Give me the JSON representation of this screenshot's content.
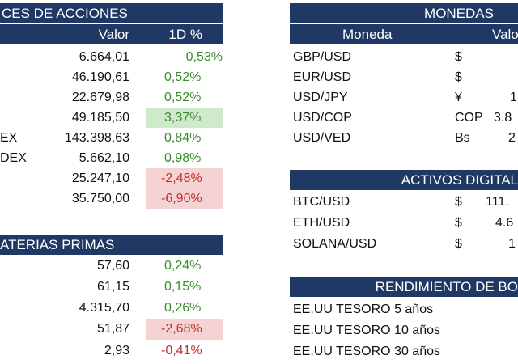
{
  "acciones": {
    "title": "CES DE ACCIONES",
    "col_valor": "Valor",
    "col_1d": "1D %",
    "rows": [
      {
        "name": "",
        "valor": "6.664,01",
        "change": "0,53%"
      },
      {
        "name": "",
        "valor": "46.190,61",
        "change": "0,52%"
      },
      {
        "name": "",
        "valor": "22.679,98",
        "change": "0,52%"
      },
      {
        "name": "",
        "valor": "49.185,50",
        "change": "3,37%"
      },
      {
        "name": "EX",
        "valor": "143.398,63",
        "change": "0,84%"
      },
      {
        "name": "DEX",
        "valor": "5.662,10",
        "change": "0,98%"
      },
      {
        "name": "",
        "valor": "25.247,10",
        "change": "-2,48%"
      },
      {
        "name": "",
        "valor": "35.750,00",
        "change": "-6,90%"
      }
    ]
  },
  "materias": {
    "title": "ATERIAS PRIMAS",
    "rows": [
      {
        "valor": "57,60",
        "change": "0,24%"
      },
      {
        "valor": "61,15",
        "change": "0,15%"
      },
      {
        "valor": "4.315,70",
        "change": "0,26%"
      },
      {
        "valor": "51,87",
        "change": "-2,68%"
      },
      {
        "valor": "2,93",
        "change": "-0,41%"
      }
    ]
  },
  "monedas": {
    "title": "MONEDAS",
    "col_moneda": "Moneda",
    "col_valor": "Valo",
    "rows": [
      {
        "pair": "GBP/USD",
        "symbol": "$",
        "value": ""
      },
      {
        "pair": "EUR/USD",
        "symbol": "$",
        "value": ""
      },
      {
        "pair": "USD/JPY",
        "symbol": "¥",
        "value": "1"
      },
      {
        "pair": "USD/COP",
        "symbol": "COP",
        "value": "3.8"
      },
      {
        "pair": "USD/VED",
        "symbol": "Bs",
        "value": "2"
      }
    ]
  },
  "activos": {
    "title": "ACTIVOS DIGITAL",
    "rows": [
      {
        "pair": "BTC/USD",
        "symbol": "$",
        "value": "111."
      },
      {
        "pair": "ETH/USD",
        "symbol": "$",
        "value": "4.6"
      },
      {
        "pair": "SOLANA/USD",
        "symbol": "$",
        "value": "1"
      }
    ]
  },
  "rendimiento": {
    "title": "RENDIMIENTO DE BO",
    "rows": [
      {
        "label": "EE.UU TESORO 5 años"
      },
      {
        "label": "EE.UU TESORO 10 años"
      },
      {
        "label": "EE.UU TESORO 30 años"
      }
    ]
  },
  "colors": {
    "header_bg": "#1f3864",
    "positive": "#3a8a2e",
    "negative": "#c0302a",
    "highlight_green": "#cfeacb",
    "highlight_red": "#f5d3d3"
  }
}
